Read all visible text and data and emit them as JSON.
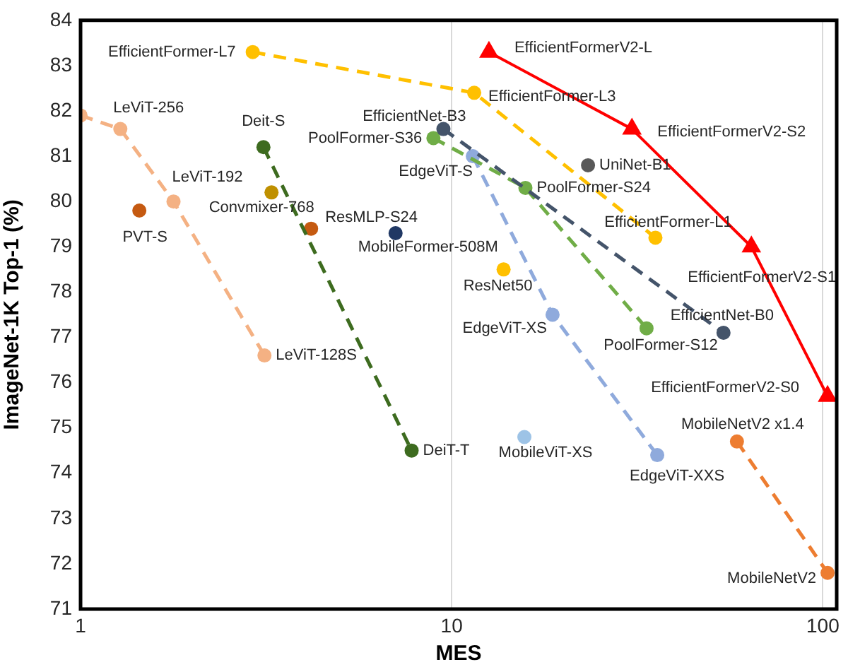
{
  "chart_data": {
    "type": "line",
    "xlabel": "MES",
    "ylabel": "ImageNet-1K Top-1 (%)",
    "log": "x",
    "grid": "x",
    "legend": false,
    "xlim": [
      1,
      109
    ],
    "xticks": [
      1,
      10,
      100
    ],
    "ylim": [
      71,
      84
    ],
    "yticks": [
      71,
      72,
      73,
      74,
      75,
      76,
      77,
      78,
      79,
      80,
      81,
      82,
      83,
      84
    ],
    "series": [
      {
        "type": "line",
        "color": "#ffc000",
        "line_style": "dashed",
        "marker": "circle",
        "x": [
          2.91,
          11.5,
          35.4
        ],
        "values": [
          83.3,
          82.4,
          79.2
        ],
        "value_labels": [
          "EfficientFormer-L7",
          "EfficientFormer-L3",
          "EfficientFormer-L1"
        ]
      },
      {
        "type": "line",
        "color": "#ff0000",
        "line_style": "solid",
        "marker": "triangle",
        "x": [
          12.6,
          30.6,
          64.2,
          103
        ],
        "values": [
          83.3,
          81.6,
          79.0,
          75.7
        ],
        "value_labels": [
          "EfficientFormerV2-L",
          "EfficientFormerV2-S2",
          "EfficientFormerV2-S1",
          "EfficientFormerV2-S0"
        ]
      },
      {
        "type": "line",
        "color": "#f4b183",
        "line_style": "dashed",
        "marker": "circle",
        "x": [
          1,
          1.28,
          1.78,
          3.13
        ],
        "values": [
          81.9,
          81.6,
          80.0,
          76.6
        ],
        "value_labels": [
          null,
          "LeViT-256",
          "LeViT-192",
          "LeViT-128S"
        ]
      },
      {
        "type": "line",
        "color": "#3d6b1f",
        "line_style": "dashed",
        "marker": "circle",
        "x": [
          3.11,
          7.8
        ],
        "values": [
          81.2,
          74.5
        ],
        "value_labels": [
          "Deit-S",
          "DeiT-T"
        ]
      },
      {
        "type": "line",
        "color": "#44546a",
        "line_style": "dashed",
        "marker": "circle",
        "x": [
          9.5,
          54
        ],
        "values": [
          81.6,
          77.1
        ],
        "value_labels": [
          "EfficientNet-B3",
          "EfficientNet-B0"
        ]
      },
      {
        "type": "line",
        "color": "#70ad47",
        "line_style": "dashed",
        "marker": "circle",
        "x": [
          8.93,
          15.8,
          33.5
        ],
        "values": [
          81.4,
          80.3,
          77.2
        ],
        "value_labels": [
          "PoolFormer-S36",
          "PoolFormer-S24",
          "PoolFormer-S12"
        ]
      },
      {
        "type": "line",
        "color": "#8faadc",
        "line_style": "dashed",
        "marker": "circle",
        "x": [
          11.4,
          18.7,
          35.8
        ],
        "values": [
          81.0,
          77.5,
          74.4
        ],
        "value_labels": [
          "EdgeViT-S",
          "EdgeViT-XS",
          "EdgeViT-XXS"
        ]
      },
      {
        "type": "line",
        "color": "#ed7d31",
        "line_style": "dashed",
        "marker": "circle",
        "x": [
          58.7,
          103
        ],
        "values": [
          74.7,
          71.8
        ],
        "value_labels": [
          "MobileNetV2 x1.4",
          "MobileNetV2"
        ]
      },
      {
        "type": "scatter",
        "color": "#c55a11",
        "marker": "circle",
        "x": [
          1.44
        ],
        "values": [
          79.8
        ],
        "value_labels": [
          "PVT-S"
        ]
      },
      {
        "type": "scatter",
        "color": "#bf9000",
        "marker": "circle",
        "x": [
          3.27
        ],
        "values": [
          80.2
        ],
        "value_labels": [
          "Convmixer-768"
        ]
      },
      {
        "type": "scatter",
        "color": "#c55a11",
        "marker": "circle",
        "x": [
          4.18
        ],
        "values": [
          79.4
        ],
        "value_labels": [
          "ResMLP-S24"
        ]
      },
      {
        "type": "scatter",
        "color": "#203864",
        "marker": "circle",
        "x": [
          7.06
        ],
        "values": [
          79.3
        ],
        "value_labels": [
          "MobileFormer-508M"
        ]
      },
      {
        "type": "scatter",
        "color": "#595959",
        "marker": "circle",
        "x": [
          23.3
        ],
        "values": [
          80.8
        ],
        "value_labels": [
          "UniNet-B1"
        ]
      },
      {
        "type": "scatter",
        "color": "#ffc000",
        "marker": "circle",
        "x": [
          13.8
        ],
        "values": [
          78.5
        ],
        "value_labels": [
          "ResNet50"
        ]
      },
      {
        "type": "scatter",
        "color": "#9dc3e6",
        "marker": "circle",
        "x": [
          15.7
        ],
        "values": [
          74.8
        ],
        "value_labels": [
          "MobileViT-XS"
        ]
      }
    ]
  }
}
